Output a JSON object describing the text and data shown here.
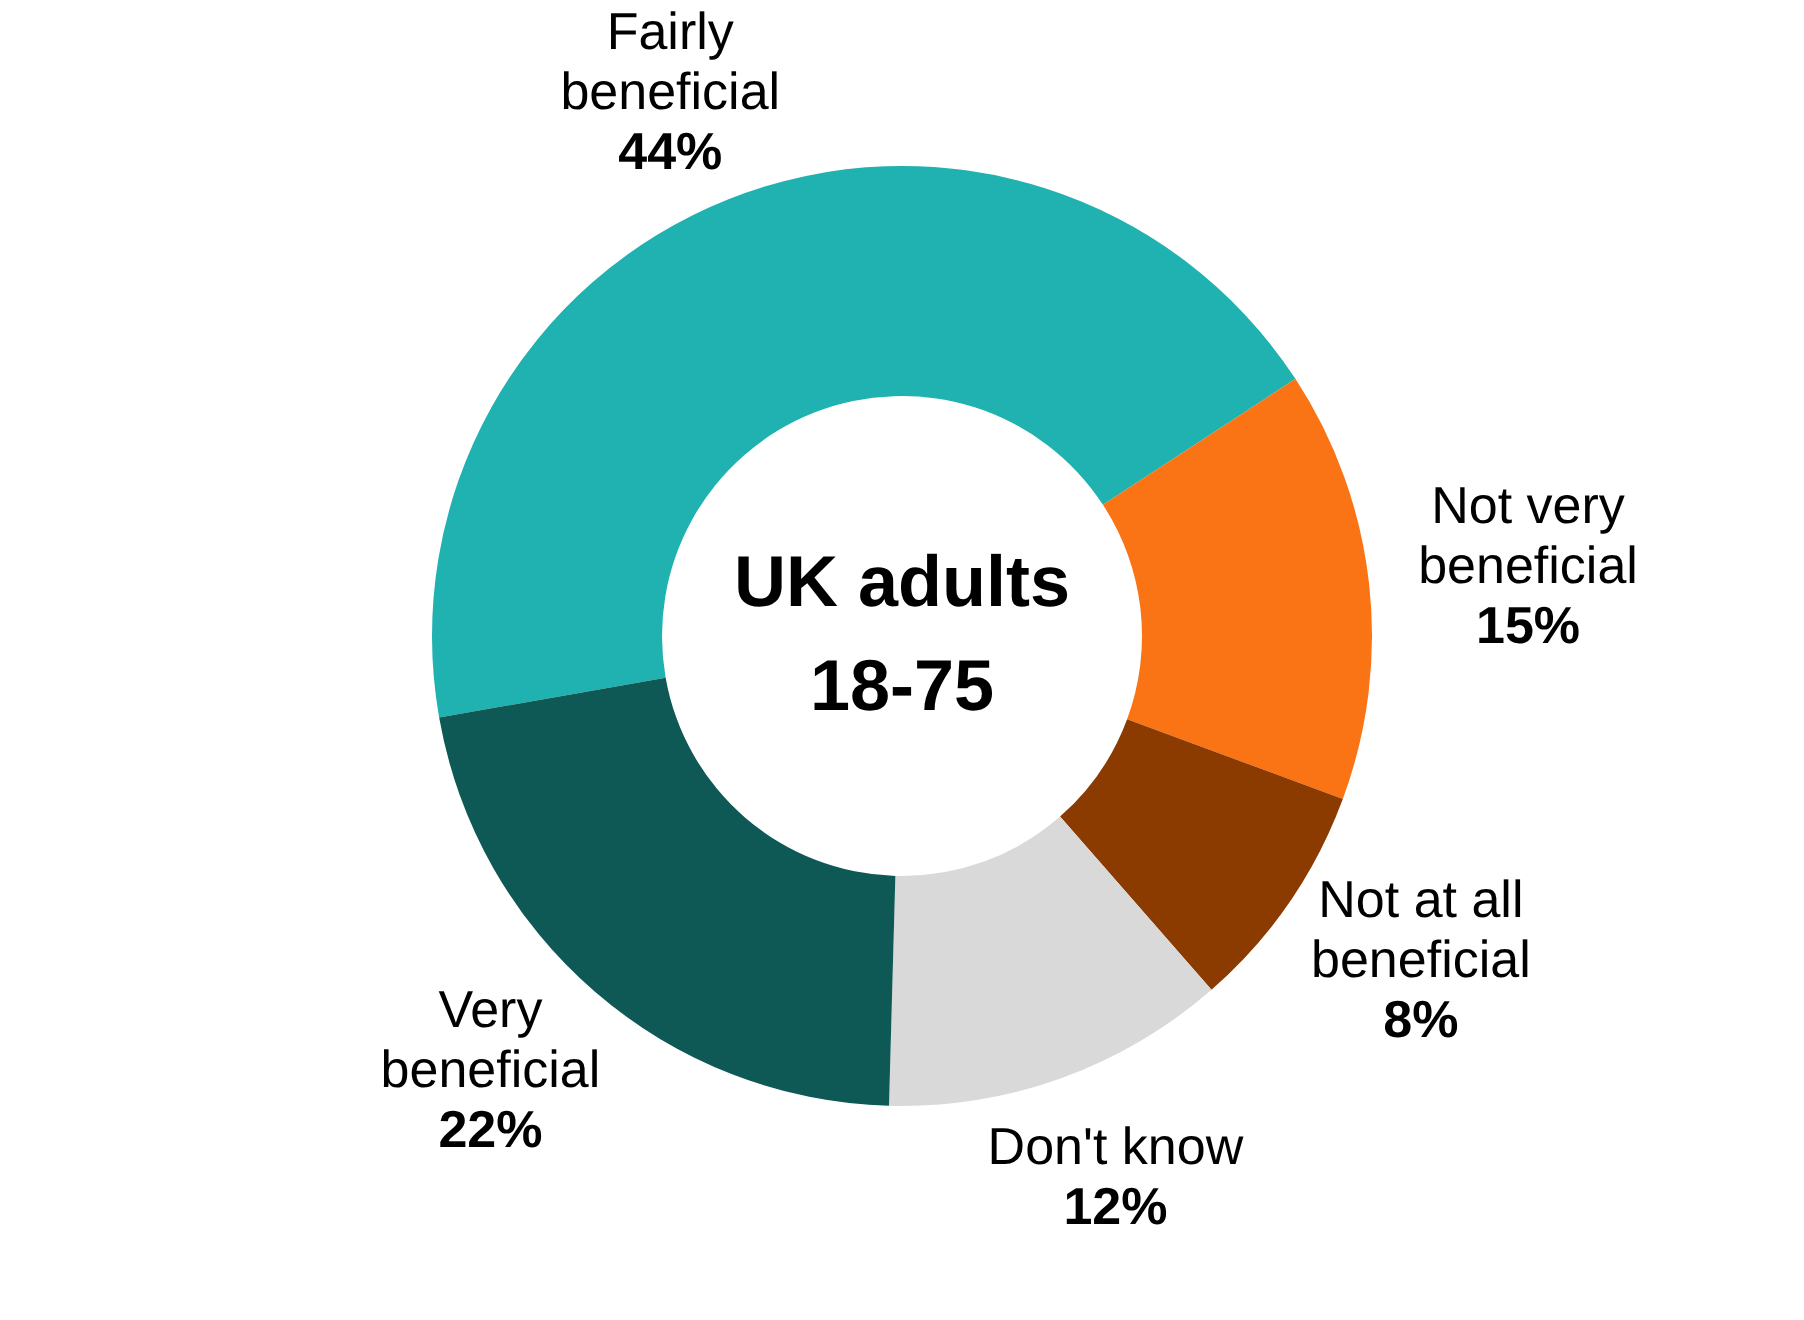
{
  "chart_data": {
    "type": "donut",
    "annotations": [
      "UK adults 18-75"
    ],
    "categories": [
      "Fairly beneficial",
      "Not very beneficial",
      "Not at all beneficial",
      "Don't know",
      "Very beneficial"
    ],
    "values": [
      44,
      15,
      8,
      12,
      22
    ],
    "value_labels": [
      "44%",
      "15%",
      "8%",
      "12%",
      "22%"
    ],
    "colors": [
      "#20b2b0",
      "#fa7315",
      "#8b3a00",
      "#d9d9d9",
      "#0e5856"
    ]
  }
}
